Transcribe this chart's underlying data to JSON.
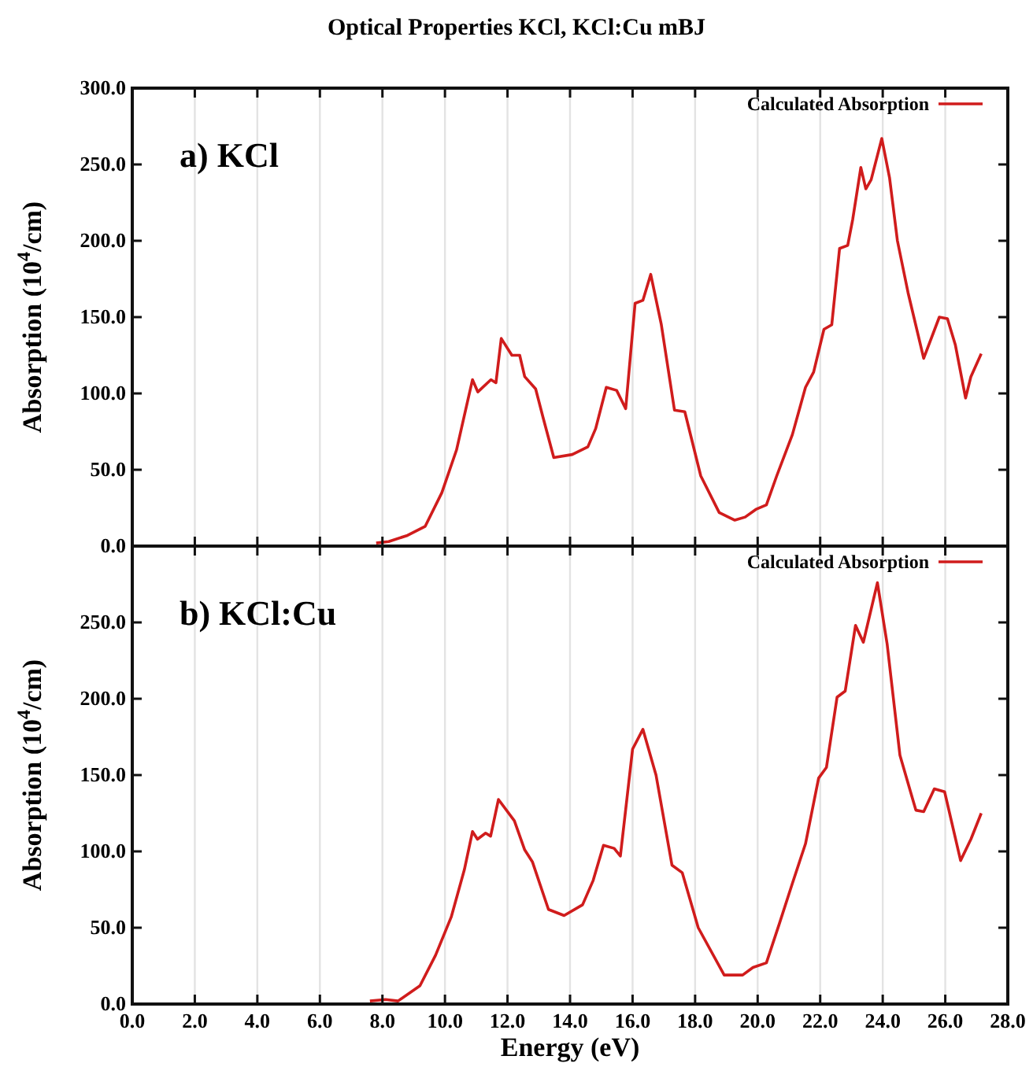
{
  "chart_data": [
    {
      "type": "line",
      "title": "Optical Properties KCl, KCl:Cu mBJ",
      "ylabel": "Absorption (10$^{4}$/cm)",
      "annotations": [
        "a) KCl"
      ],
      "xlim": [
        0,
        28
      ],
      "xticks": [
        0,
        2,
        4,
        6,
        8,
        10,
        12,
        14,
        16,
        18,
        20,
        22,
        24,
        26,
        28
      ],
      "ylim": [
        0,
        300
      ],
      "yticks": [
        {
          "value": 0,
          "label": "0.0"
        },
        {
          "value": 50,
          "label": "50.0"
        },
        {
          "value": 100,
          "label": "100.0"
        },
        {
          "value": 150,
          "label": "150.0"
        },
        {
          "value": 200,
          "label": "200.0"
        },
        {
          "value": 250,
          "label": "250.0"
        },
        {
          "value": 300,
          "label": "300.0"
        }
      ],
      "tick_labels": "y",
      "grid": "x",
      "legend": "top right",
      "line_style": "solid",
      "series": [
        {
          "name": "Calculated Absorption",
          "color": "#d01c1c",
          "x": [
            7.8,
            8.2,
            8.8,
            9.37,
            9.9,
            10.37,
            10.88,
            11.05,
            11.47,
            11.63,
            11.8,
            12.14,
            12.39,
            12.55,
            12.9,
            13.14,
            13.48,
            14.07,
            14.57,
            14.82,
            15.16,
            15.49,
            15.78,
            16.08,
            16.33,
            16.58,
            16.92,
            17.34,
            17.67,
            18.18,
            18.77,
            19.27,
            19.6,
            19.94,
            20.28,
            20.61,
            21.11,
            21.53,
            21.79,
            22.12,
            22.37,
            22.62,
            22.88,
            23.04,
            23.3,
            23.46,
            23.63,
            23.97,
            24.22,
            24.47,
            24.81,
            25.31,
            25.81,
            26.07,
            26.32,
            26.65,
            26.82,
            27.15
          ],
          "values": [
            2,
            3,
            7,
            13,
            35,
            63,
            109,
            101,
            109,
            107,
            136,
            125,
            125,
            111,
            103,
            84,
            58,
            60,
            65,
            77,
            104,
            102,
            90,
            159,
            161,
            178,
            145,
            89,
            88,
            46,
            22,
            17,
            19,
            24,
            27,
            46,
            73,
            104,
            114,
            142,
            145,
            195,
            197,
            214,
            248,
            234,
            240,
            267,
            241,
            200,
            166,
            123,
            150,
            149,
            132,
            97,
            111,
            126
          ]
        }
      ]
    },
    {
      "type": "line",
      "xlabel": "Energy (eV)",
      "ylabel": "Absorption (10$^{4}$/cm)",
      "annotations": [
        "b) KCl:Cu"
      ],
      "xlim": [
        0,
        28
      ],
      "xticks": [
        {
          "value": 0,
          "label": "0.0"
        },
        {
          "value": 2,
          "label": "2.0"
        },
        {
          "value": 4,
          "label": "4.0"
        },
        {
          "value": 6,
          "label": "6.0"
        },
        {
          "value": 8,
          "label": "8.0"
        },
        {
          "value": 10,
          "label": "10.0"
        },
        {
          "value": 12,
          "label": "12.0"
        },
        {
          "value": 14,
          "label": "14.0"
        },
        {
          "value": 16,
          "label": "16.0"
        },
        {
          "value": 18,
          "label": "18.0"
        },
        {
          "value": 20,
          "label": "20.0"
        },
        {
          "value": 22,
          "label": "22.0"
        },
        {
          "value": 24,
          "label": "24.0"
        },
        {
          "value": 26,
          "label": "26.0"
        },
        {
          "value": 28,
          "label": "28.0"
        }
      ],
      "ylim": [
        0,
        300
      ],
      "yticks": [
        {
          "value": 0,
          "label": "0.0"
        },
        {
          "value": 50,
          "label": "50.0"
        },
        {
          "value": 100,
          "label": "100.0"
        },
        {
          "value": 150,
          "label": "150.0"
        },
        {
          "value": 200,
          "label": "200.0"
        },
        {
          "value": 250,
          "label": "250.0"
        }
      ],
      "grid": "x",
      "legend": "top right",
      "line_style": "solid",
      "series": [
        {
          "name": "Calculated Absorption",
          "color": "#d01c1c",
          "x": [
            7.6,
            8.1,
            8.5,
            9.2,
            9.7,
            10.2,
            10.62,
            10.88,
            11.04,
            11.3,
            11.46,
            11.71,
            12.22,
            12.55,
            12.8,
            13.31,
            13.81,
            14.4,
            14.74,
            15.07,
            15.41,
            15.61,
            16.0,
            16.33,
            16.75,
            17.26,
            17.59,
            18.1,
            18.93,
            19.52,
            19.85,
            20.28,
            20.7,
            21.11,
            21.53,
            21.95,
            22.2,
            22.54,
            22.8,
            23.13,
            23.38,
            23.83,
            24.14,
            24.55,
            25.06,
            25.31,
            25.65,
            25.98,
            26.49,
            26.82,
            27.15
          ],
          "values": [
            2,
            3,
            2,
            12,
            32,
            57,
            88,
            113,
            108,
            112,
            110,
            134,
            120,
            101,
            93,
            62,
            58,
            65,
            81,
            104,
            102,
            97,
            167,
            180,
            150,
            91,
            86,
            50,
            19,
            19,
            24,
            27,
            53,
            79,
            105,
            148,
            155,
            201,
            205,
            248,
            237,
            276,
            236,
            163,
            127,
            126,
            141,
            139,
            94,
            108,
            125
          ]
        }
      ]
    }
  ]
}
